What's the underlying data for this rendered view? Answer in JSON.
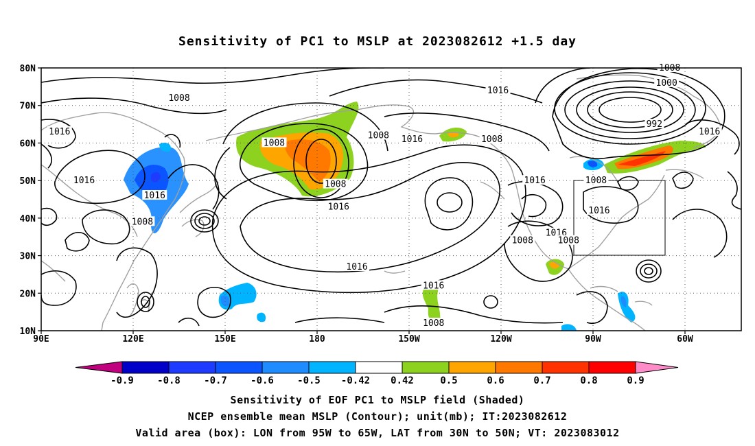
{
  "title": "Sensitivity of PC1 to MSLP at 2023082612 +1.5 day",
  "lat_labels": [
    "80N",
    "70N",
    "60N",
    "50N",
    "40N",
    "30N",
    "20N",
    "10N"
  ],
  "lon_labels": [
    "90E",
    "120E",
    "150E",
    "180",
    "150W",
    "120W",
    "90W",
    "60W"
  ],
  "contour_labels": [
    {
      "text": "1008",
      "lon": 135,
      "lat": 72
    },
    {
      "text": "1016",
      "lon": 96,
      "lat": 63
    },
    {
      "text": "1016",
      "lon": 104,
      "lat": 50
    },
    {
      "text": "1016",
      "lon": 127,
      "lat": 46
    },
    {
      "text": "1008",
      "lon": 123,
      "lat": 39
    },
    {
      "text": "1008",
      "lon": 166,
      "lat": 60
    },
    {
      "text": "1016",
      "lon": -173,
      "lat": 43
    },
    {
      "text": "1008",
      "lon": -174,
      "lat": 49
    },
    {
      "text": "1008",
      "lon": -160,
      "lat": 62
    },
    {
      "text": "1016",
      "lon": -149,
      "lat": 61
    },
    {
      "text": "1016",
      "lon": -121,
      "lat": 74
    },
    {
      "text": "1008",
      "lon": -123,
      "lat": 61
    },
    {
      "text": "1008",
      "lon": -65,
      "lat": 80
    },
    {
      "text": "1000",
      "lon": -66,
      "lat": 76
    },
    {
      "text": "992",
      "lon": -70,
      "lat": 65
    },
    {
      "text": "1016",
      "lon": -52,
      "lat": 63
    },
    {
      "text": "1008",
      "lon": -89,
      "lat": 50
    },
    {
      "text": "1016",
      "lon": -109,
      "lat": 50
    },
    {
      "text": "1016",
      "lon": -102,
      "lat": 36
    },
    {
      "text": "1008",
      "lon": -113,
      "lat": 34
    },
    {
      "text": "1008",
      "lon": -98,
      "lat": 34
    },
    {
      "text": "1016",
      "lon": -88,
      "lat": 42
    },
    {
      "text": "1016",
      "lon": -167,
      "lat": 27
    },
    {
      "text": "1016",
      "lon": -142,
      "lat": 22
    },
    {
      "text": "1008",
      "lon": -142,
      "lat": 12
    }
  ],
  "colorbar": {
    "tick_labels": [
      "-0.9",
      "-0.8",
      "-0.7",
      "-0.6",
      "-0.5",
      "-0.42",
      "0.42",
      "0.5",
      "0.6",
      "0.7",
      "0.8",
      "0.9"
    ],
    "colors": [
      "#c0007f",
      "#0000c8",
      "#1e3cff",
      "#0a55ff",
      "#1e8cff",
      "#00b4ff",
      "#ffffff",
      "#8cd21e",
      "#ffa500",
      "#ff7800",
      "#ff3200",
      "#ff0000",
      "#ff8cc8"
    ]
  },
  "captions": [
    "Sensitivity of EOF PC1 to MSLP field (Shaded)",
    "NCEP ensemble mean MSLP (Contour); unit(mb); IT:2023082612",
    "Valid area (box): LON from 95W to 65W, LAT from 30N to 50N; VT: 2023083012"
  ],
  "valid_box": {
    "lon_west": -95,
    "lon_east": -65,
    "lat_south": 30,
    "lat_north": 50
  }
}
